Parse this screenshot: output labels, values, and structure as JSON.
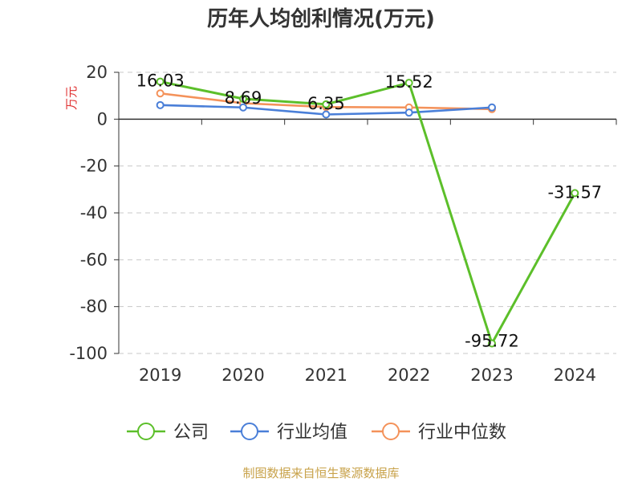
{
  "chart_data": {
    "type": "line",
    "title": "历年人均创利情况(万元)",
    "xlabel": "",
    "ylabel": "万元",
    "categories": [
      "2019",
      "2020",
      "2021",
      "2022",
      "2023",
      "2024"
    ],
    "ylim": [
      -100,
      20
    ],
    "yticks": [
      "20",
      "0",
      "-20",
      "-40",
      "-60",
      "-80",
      "-100"
    ],
    "grid": true,
    "legend_position": "bottom",
    "series": [
      {
        "name": "公司",
        "color": "#5cbf2a",
        "values": [
          16.03,
          8.69,
          6.35,
          15.52,
          -95.72,
          -31.57
        ],
        "labels": [
          "16.03",
          "8.69",
          "6.35",
          "15.52",
          "-95.72",
          "-31.57"
        ]
      },
      {
        "name": "行业均值",
        "color": "#4a7fd8",
        "values": [
          6.0,
          5.0,
          2.0,
          2.8,
          5.0,
          null
        ]
      },
      {
        "name": "行业中位数",
        "color": "#f4925a",
        "values": [
          11.0,
          6.8,
          5.2,
          5.0,
          4.3,
          null
        ]
      }
    ],
    "source": "制图数据来自恒生聚源数据库"
  }
}
